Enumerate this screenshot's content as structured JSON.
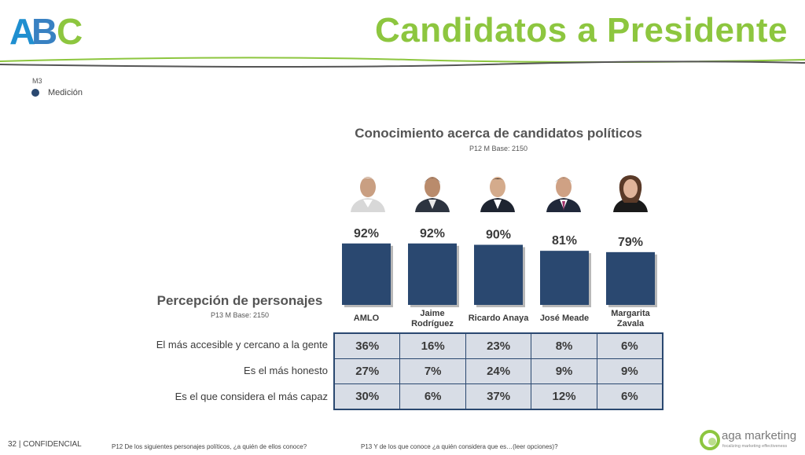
{
  "logo": {
    "text": "ABC"
  },
  "title": "Candidatos a Presidente",
  "legend": {
    "wave": "M3",
    "item": "Medición",
    "color": "#2a4870"
  },
  "chart_data": {
    "type": "bar",
    "title": "Conocimiento acerca de candidatos políticos",
    "subtitle": "P12 M Base: 2150",
    "categories": [
      "AMLO",
      "Jaime Rodríguez",
      "Ricardo Anaya",
      "José Meade",
      "Margarita Zavala"
    ],
    "series": [
      {
        "name": "Medición",
        "values": [
          92,
          92,
          90,
          81,
          79
        ]
      }
    ],
    "value_labels": [
      "92%",
      "92%",
      "90%",
      "81%",
      "79%"
    ],
    "ylim": [
      0,
      100
    ],
    "grid": false,
    "bar_color": "#2a4870"
  },
  "perception": {
    "title": "Percepción de personajes",
    "subtitle": "P13 M Base: 2150",
    "rows": [
      {
        "label": "El más accesible y cercano a la gente",
        "values": [
          "36%",
          "16%",
          "23%",
          "8%",
          "6%"
        ]
      },
      {
        "label": "Es el más honesto",
        "values": [
          "27%",
          "7%",
          "24%",
          "9%",
          "9%"
        ]
      },
      {
        "label": "Es el que considera el más capaz",
        "values": [
          "30%",
          "6%",
          "37%",
          "12%",
          "6%"
        ]
      }
    ]
  },
  "footer": {
    "page": "32  | CONFIDENCIAL",
    "q1": "P12 De los siguientes personajes políticos, ¿a quién de ellos conoce?",
    "q2": "P13 Y de los que conoce ¿a quién considera que es…(leer opciones)?",
    "brand": "aga marketing",
    "tagline": "focalizing marketing effectiveness"
  },
  "colors": {
    "accent_green": "#8dc63f",
    "navy": "#2a4870",
    "cell_bg": "#d8dde6"
  }
}
